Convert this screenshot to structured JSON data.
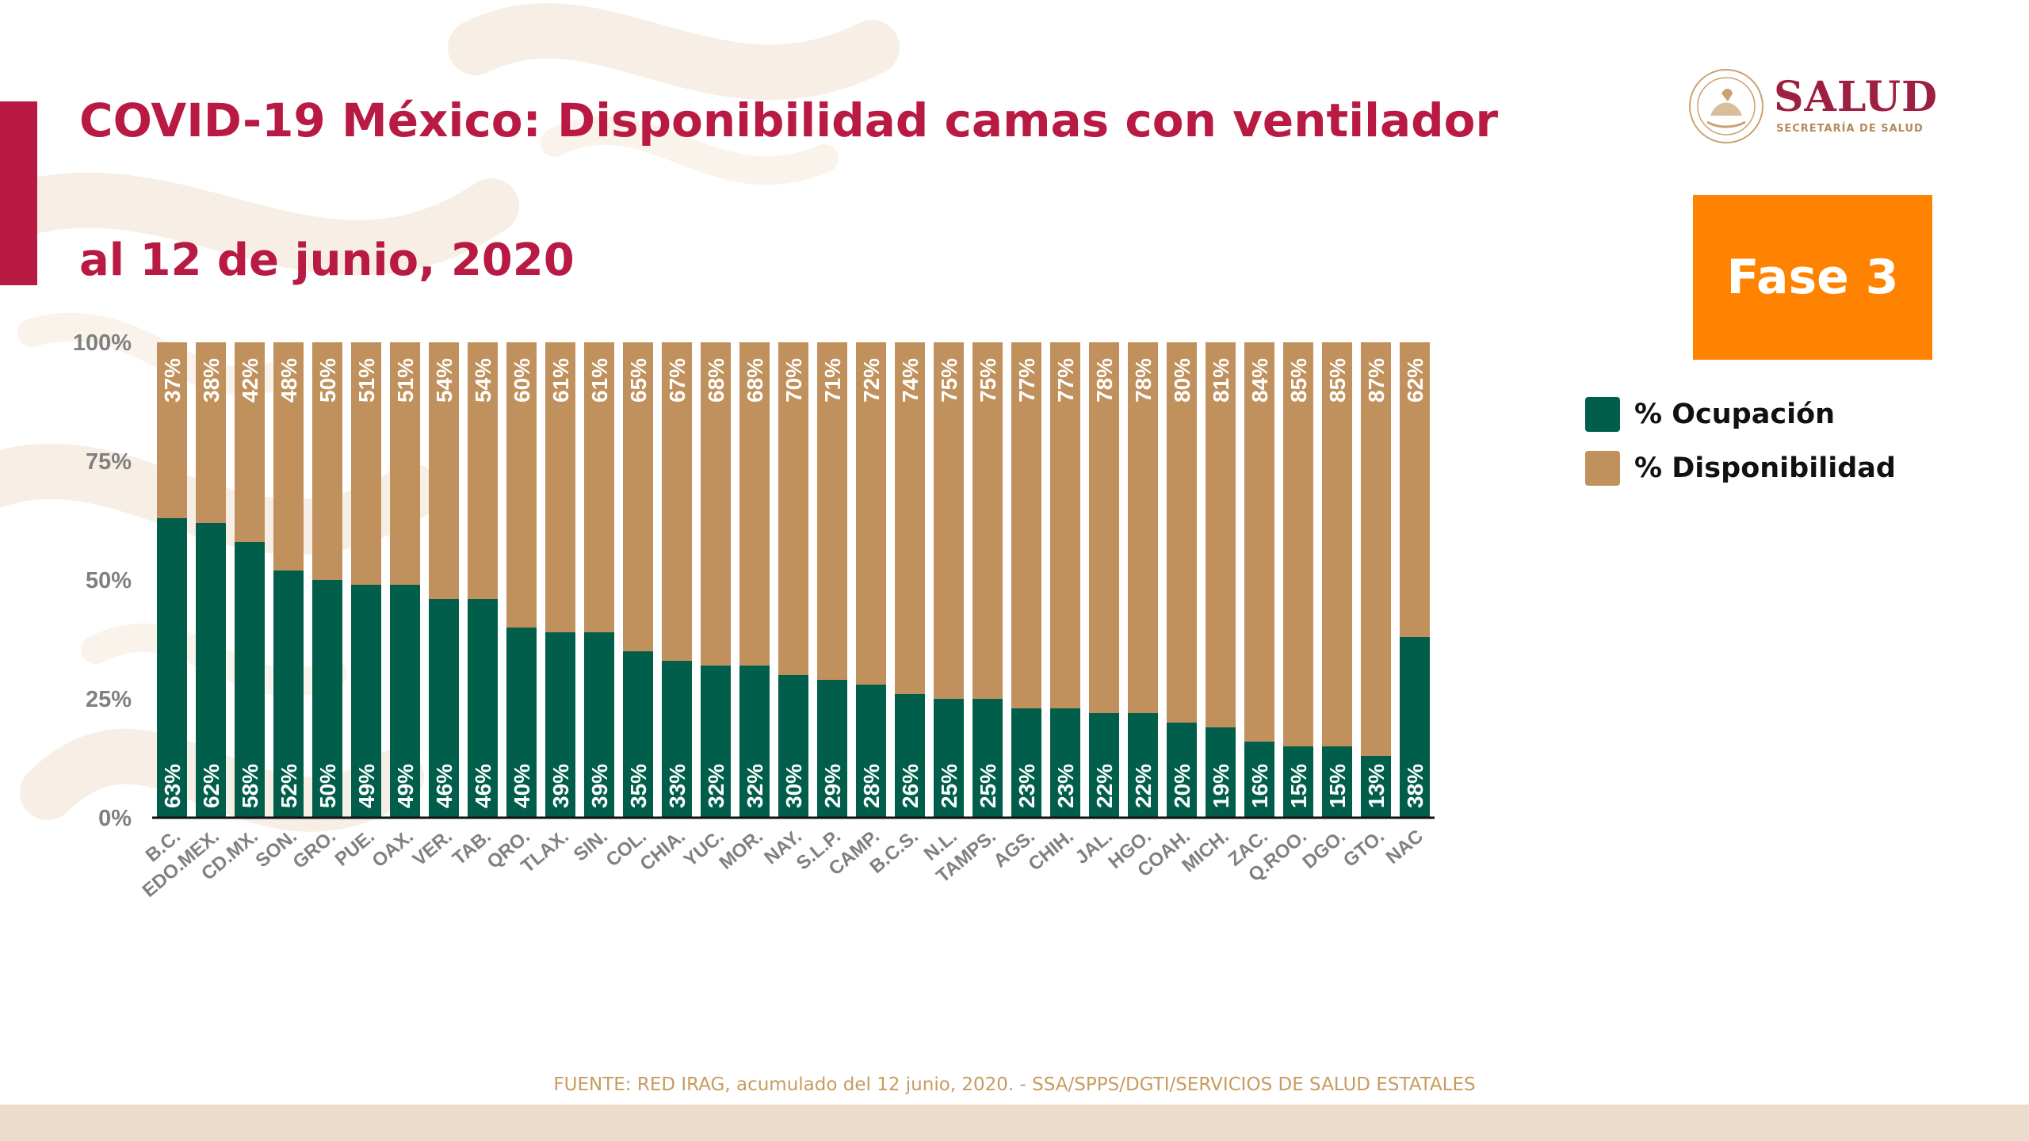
{
  "title": "COVID-19 México: Disponibilidad camas con ventilador",
  "subtitle": "al 12 de junio, 2020",
  "logo": {
    "word": "SALUD",
    "sub": "SECRETARÍA DE SALUD",
    "seal_text": "ESTADOS UNIDOS MEXICANOS"
  },
  "phase_label": "Fase 3",
  "legend": [
    {
      "label": "% Ocupación",
      "color": "#005e4b"
    },
    {
      "label": "% Disponibilidad",
      "color": "#c0915c"
    }
  ],
  "source": "FUENTE: RED IRAG, acumulado del 12  junio, 2020. -  SSA/SPPS/DGTI/SERVICIOS DE SALUD ESTATALES",
  "colors": {
    "accent": "#b81a43",
    "occupancy": "#005e4b",
    "availability": "#c0915c",
    "phase": "#ff8200",
    "axis_text": "#808080",
    "footer": "#ecdccb"
  },
  "chart_data": {
    "type": "bar",
    "stacked": true,
    "percent_stacked": true,
    "categories": [
      "B.C.",
      "EDO.MEX.",
      "CD.MX.",
      "SON.",
      "GRO.",
      "PUE.",
      "OAX.",
      "VER.",
      "TAB.",
      "QRO.",
      "TLAX.",
      "SIN.",
      "COL.",
      "CHIA.",
      "YUC.",
      "MOR.",
      "NAY.",
      "S.L.P.",
      "CAMP.",
      "B.C.S.",
      "N.L.",
      "TAMPS.",
      "AGS.",
      "CHIH.",
      "JAL.",
      "HGO.",
      "COAH.",
      "MICH.",
      "ZAC.",
      "Q.ROO.",
      "DGO.",
      "GTO.",
      "NAC"
    ],
    "series": [
      {
        "name": "% Ocupación",
        "values": [
          63,
          62,
          58,
          52,
          50,
          49,
          49,
          46,
          46,
          40,
          39,
          39,
          35,
          33,
          32,
          32,
          30,
          29,
          28,
          26,
          25,
          25,
          23,
          23,
          22,
          22,
          20,
          19,
          16,
          15,
          15,
          13,
          38
        ],
        "labels": [
          "63%",
          "62%",
          "58%",
          "52%",
          "50%",
          "49%",
          "49%",
          "46%",
          "46%",
          "40%",
          "39%",
          "39%",
          "35%",
          "33%",
          "32%",
          "32%",
          "30%",
          "29%",
          "28%",
          "26%",
          "25%",
          "25%",
          "23%",
          "23%",
          "22%",
          "22%",
          "20%",
          "19%",
          "16%",
          "15%",
          "15%",
          "13%",
          "38%"
        ],
        "color": "#005e4b"
      },
      {
        "name": "% Disponibilidad",
        "values": [
          37,
          38,
          42,
          48,
          50,
          51,
          51,
          54,
          54,
          60,
          61,
          61,
          65,
          67,
          68,
          68,
          70,
          71,
          72,
          74,
          75,
          75,
          77,
          77,
          78,
          78,
          80,
          81,
          84,
          85,
          85,
          87,
          62
        ],
        "labels": [
          "37%",
          "38%",
          "42%",
          "48%",
          "50%",
          "51%",
          "51%",
          "54%",
          "54%",
          "60%",
          "61%",
          "61%",
          "65%",
          "67%",
          "68%",
          "68%",
          "70%",
          "71%",
          "72%",
          "74%",
          "75%",
          "75%",
          "77%",
          "77%",
          "78%",
          "78%",
          "80%",
          "81%",
          "84%",
          "85%",
          "85%",
          "87%",
          "62%"
        ],
        "color": "#c0915c"
      }
    ],
    "y_ticks": [
      "0%",
      "25%",
      "50%",
      "75%",
      "100%"
    ],
    "ylim": [
      0,
      100
    ],
    "grid": false,
    "legend_position": "right"
  }
}
